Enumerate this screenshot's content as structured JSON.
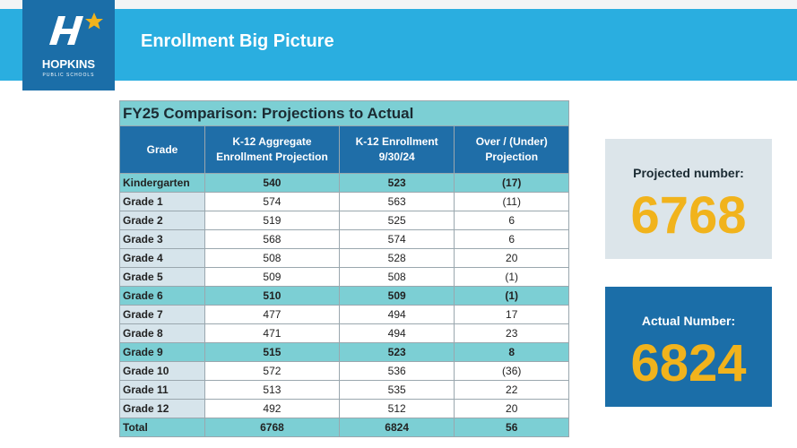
{
  "logo": {
    "name": "HOPKINS",
    "subtitle": "PUBLIC SCHOOLS"
  },
  "header": {
    "title": "Enrollment Big Picture"
  },
  "table": {
    "title": "FY25 Comparison: Projections to Actual",
    "columns": [
      "Grade",
      "K-12 Aggregate Enrollment Projection",
      "K-12 Enrollment 9/30/24",
      "Over / (Under) Projection"
    ],
    "rows": [
      {
        "cells": [
          "Kindergarten",
          "540",
          "523",
          "(17)"
        ],
        "highlight": true
      },
      {
        "cells": [
          "Grade 1",
          "574",
          "563",
          "(11)"
        ],
        "highlight": false
      },
      {
        "cells": [
          "Grade 2",
          "519",
          "525",
          "6"
        ],
        "highlight": false
      },
      {
        "cells": [
          "Grade 3",
          "568",
          "574",
          "6"
        ],
        "highlight": false
      },
      {
        "cells": [
          "Grade 4",
          "508",
          "528",
          "20"
        ],
        "highlight": false
      },
      {
        "cells": [
          "Grade 5",
          "509",
          "508",
          "(1)"
        ],
        "highlight": false
      },
      {
        "cells": [
          "Grade 6",
          "510",
          "509",
          "(1)"
        ],
        "highlight": true
      },
      {
        "cells": [
          "Grade 7",
          "477",
          "494",
          "17"
        ],
        "highlight": false
      },
      {
        "cells": [
          "Grade 8",
          "471",
          "494",
          "23"
        ],
        "highlight": false
      },
      {
        "cells": [
          "Grade 9",
          "515",
          "523",
          "8"
        ],
        "highlight": true
      },
      {
        "cells": [
          "Grade 10",
          "572",
          "536",
          "(36)"
        ],
        "highlight": false
      },
      {
        "cells": [
          "Grade 11",
          "513",
          "535",
          "22"
        ],
        "highlight": false
      },
      {
        "cells": [
          "Grade 12",
          "492",
          "512",
          "20"
        ],
        "highlight": false
      },
      {
        "cells": [
          "Total",
          "6768",
          "6824",
          "56"
        ],
        "highlight": true
      }
    ]
  },
  "projected": {
    "label": "Projected number:",
    "value": "6768"
  },
  "actual": {
    "label": "Actual Number:",
    "value": "6824"
  }
}
